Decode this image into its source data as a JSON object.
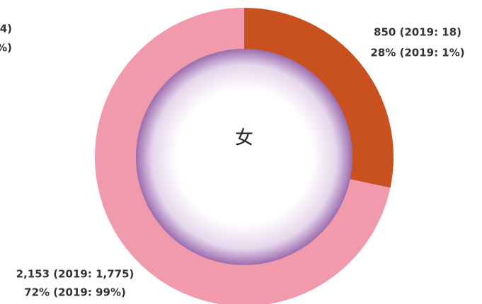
{
  "chart_data": {
    "type": "donut",
    "center_label": "女",
    "series": [
      {
        "color": "#c9511f",
        "values": [
          850
        ],
        "value_labels": [
          "850 (2019: 18)"
        ],
        "percent_labels": [
          "28% (2019: 1%)"
        ]
      },
      {
        "color": "#f09aab",
        "values": [
          2153
        ],
        "value_labels": [
          "2,153 (2019: 1,775)"
        ],
        "percent_labels": [
          "72% (2019: 99%)"
        ]
      }
    ],
    "annotations": [
      "4)",
      "%)"
    ]
  }
}
